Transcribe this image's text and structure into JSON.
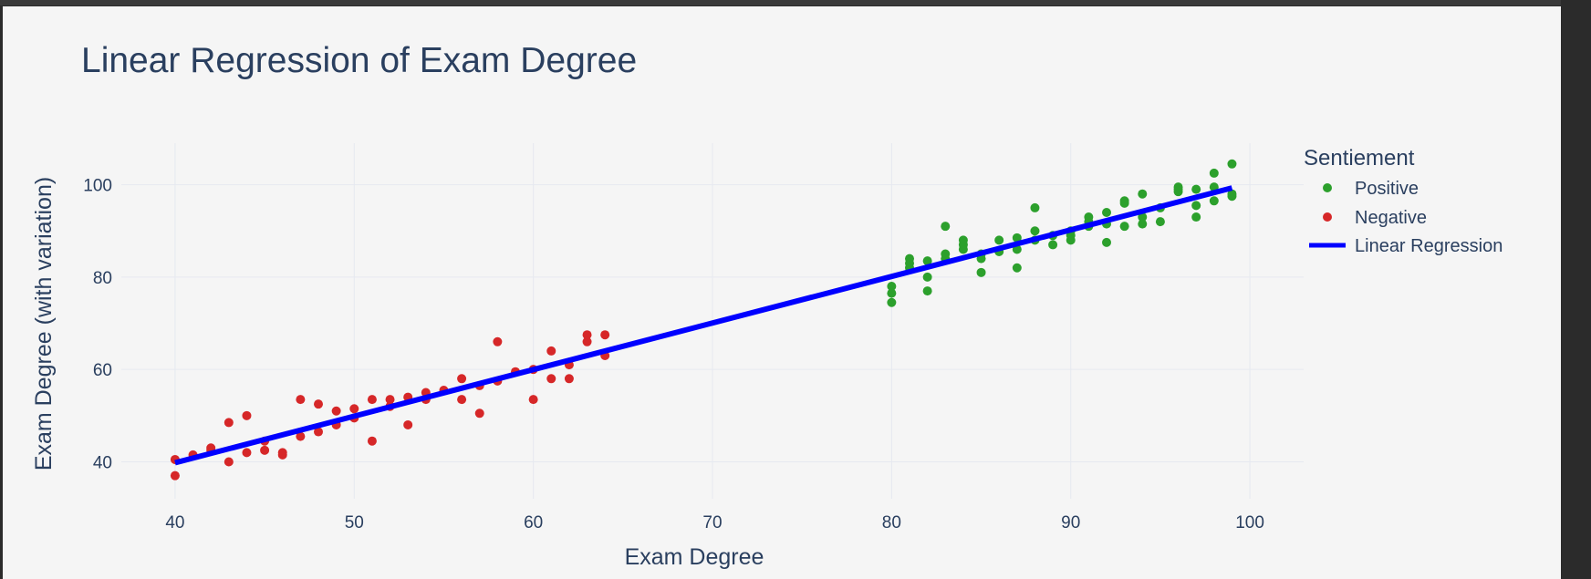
{
  "chart_data": {
    "type": "scatter",
    "title": "Linear Regression of Exam Degree",
    "xlabel": "Exam Degree",
    "ylabel": "Exam Degree (with variation)",
    "xlim": [
      37,
      103
    ],
    "ylim": [
      32,
      109
    ],
    "xticks": [
      40,
      50,
      60,
      70,
      80,
      90,
      100
    ],
    "yticks": [
      40,
      60,
      80,
      100
    ],
    "grid": true,
    "legend": {
      "title": "Sentiement",
      "position": "right"
    },
    "series": [
      {
        "name": "Positive",
        "color": "#2ca02c",
        "points": [
          [
            80,
            74.5
          ],
          [
            80,
            76.5
          ],
          [
            80,
            78
          ],
          [
            81,
            82
          ],
          [
            81,
            83
          ],
          [
            81,
            84
          ],
          [
            82,
            77
          ],
          [
            82,
            80
          ],
          [
            82,
            83.5
          ],
          [
            83,
            84
          ],
          [
            83,
            85
          ],
          [
            83,
            91
          ],
          [
            84,
            86
          ],
          [
            84,
            87
          ],
          [
            84,
            88
          ],
          [
            85,
            81
          ],
          [
            85,
            84
          ],
          [
            85,
            85
          ],
          [
            86,
            85.5
          ],
          [
            86,
            88
          ],
          [
            87,
            82
          ],
          [
            87,
            86
          ],
          [
            87,
            88.5
          ],
          [
            88,
            88
          ],
          [
            88,
            90
          ],
          [
            88,
            95
          ],
          [
            89,
            87
          ],
          [
            89,
            89
          ],
          [
            90,
            88
          ],
          [
            90,
            89
          ],
          [
            90,
            90
          ],
          [
            91,
            91
          ],
          [
            91,
            92
          ],
          [
            91,
            93
          ],
          [
            92,
            87.5
          ],
          [
            92,
            91.5
          ],
          [
            92,
            94
          ],
          [
            93,
            91
          ],
          [
            93,
            96
          ],
          [
            93,
            96.5
          ],
          [
            94,
            91.5
          ],
          [
            94,
            93
          ],
          [
            94,
            98
          ],
          [
            95,
            92
          ],
          [
            95,
            95
          ],
          [
            96,
            98.5
          ],
          [
            96,
            99
          ],
          [
            96,
            99.5
          ],
          [
            97,
            93
          ],
          [
            97,
            95.5
          ],
          [
            97,
            99
          ],
          [
            98,
            96.5
          ],
          [
            98,
            99.5
          ],
          [
            98,
            102.5
          ],
          [
            99,
            97.5
          ],
          [
            99,
            98
          ],
          [
            99,
            104.5
          ]
        ]
      },
      {
        "name": "Negative",
        "color": "#d62728",
        "points": [
          [
            40,
            37
          ],
          [
            40,
            40.5
          ],
          [
            41,
            41.5
          ],
          [
            42,
            42.5
          ],
          [
            42,
            43
          ],
          [
            43,
            40
          ],
          [
            43,
            48.5
          ],
          [
            44,
            42
          ],
          [
            44,
            50
          ],
          [
            45,
            42.5
          ],
          [
            45,
            44.5
          ],
          [
            46,
            41.5
          ],
          [
            46,
            42
          ],
          [
            47,
            45.5
          ],
          [
            47,
            53.5
          ],
          [
            48,
            46.5
          ],
          [
            48,
            52.5
          ],
          [
            49,
            48
          ],
          [
            49,
            51
          ],
          [
            50,
            49.5
          ],
          [
            50,
            51.5
          ],
          [
            51,
            44.5
          ],
          [
            51,
            53.5
          ],
          [
            52,
            52
          ],
          [
            52,
            53.5
          ],
          [
            53,
            48
          ],
          [
            53,
            54
          ],
          [
            54,
            53.5
          ],
          [
            54,
            55
          ],
          [
            55,
            55.5
          ],
          [
            56,
            53.5
          ],
          [
            56,
            58
          ],
          [
            57,
            50.5
          ],
          [
            57,
            56.5
          ],
          [
            58,
            57.5
          ],
          [
            58,
            66
          ],
          [
            59,
            59.5
          ],
          [
            60,
            53.5
          ],
          [
            60,
            60
          ],
          [
            61,
            58
          ],
          [
            61,
            64
          ],
          [
            62,
            58
          ],
          [
            62,
            61
          ],
          [
            63,
            66
          ],
          [
            63,
            67.5
          ],
          [
            64,
            63
          ],
          [
            64,
            67.5
          ]
        ]
      },
      {
        "name": "Linear Regression",
        "color": "#0000ff",
        "type": "line",
        "points": [
          [
            40,
            39.8
          ],
          [
            99,
            99.3
          ]
        ]
      }
    ]
  }
}
